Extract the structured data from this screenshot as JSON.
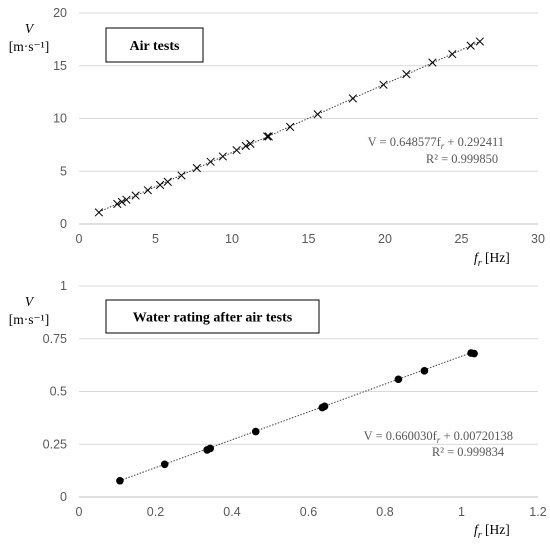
{
  "chart_data": [
    {
      "type": "scatter",
      "title": "Air tests",
      "ylabel_var": "V",
      "ylabel_unit": "[m·s⁻¹]",
      "xlabel_var": "f",
      "xlabel_sub": "r",
      "xlabel_unit": "[Hz]",
      "xlim": [
        0,
        30
      ],
      "ylim": [
        0,
        20
      ],
      "xticks": [
        0,
        5,
        10,
        15,
        20,
        25,
        30
      ],
      "yticks": [
        0,
        5,
        10,
        15,
        20
      ],
      "tick_labels_x": [
        "0",
        "5",
        "10",
        "15",
        "20",
        "25",
        "30"
      ],
      "tick_labels_y": [
        "0",
        "5",
        "10",
        "15",
        "20"
      ],
      "marker": "x",
      "grid": "horizontal",
      "x": [
        1.3,
        2.5,
        2.8,
        3.1,
        3.7,
        4.5,
        5.3,
        5.8,
        6.7,
        7.7,
        8.6,
        9.4,
        10.3,
        10.9,
        11.2,
        12.3,
        12.4,
        13.8,
        15.6,
        17.9,
        19.9,
        21.4,
        23.1,
        24.4,
        25.6,
        26.2
      ],
      "y": [
        1.1,
        1.9,
        2.1,
        2.3,
        2.7,
        3.2,
        3.7,
        4.0,
        4.6,
        5.3,
        5.9,
        6.4,
        7.0,
        7.4,
        7.6,
        8.3,
        8.3,
        9.2,
        10.4,
        11.9,
        13.2,
        14.2,
        15.3,
        16.1,
        16.9,
        17.3
      ],
      "fit": {
        "slope": 0.648577,
        "intercept": 0.292411,
        "x_range": [
          1.3,
          26.2
        ]
      },
      "equation": "V = 0.648577f",
      "equation_sub": "r",
      "equation_tail": " + 0.292411",
      "r2": "R² = 0.999850"
    },
    {
      "type": "scatter",
      "title": "Water rating after air tests",
      "ylabel_var": "V",
      "ylabel_unit": "[m·s⁻¹]",
      "xlabel_var": "f",
      "xlabel_sub": "r",
      "xlabel_unit": "[Hz]",
      "xlim": [
        0,
        1.2
      ],
      "ylim": [
        0,
        1
      ],
      "xticks": [
        0,
        0.2,
        0.4,
        0.6,
        0.8,
        1,
        1.2
      ],
      "yticks": [
        0,
        0.25,
        0.5,
        0.75,
        1
      ],
      "tick_labels_x": [
        "0",
        "0.2",
        "0.4",
        "0.6",
        "0.8",
        "1",
        "1.2"
      ],
      "tick_labels_y": [
        "0",
        "0.25",
        "0.5",
        "0.75",
        "1"
      ],
      "marker": "dot",
      "grid": "horizontal",
      "x": [
        0.107,
        0.224,
        0.335,
        0.343,
        0.462,
        0.636,
        0.642,
        0.835,
        0.903,
        1.025,
        1.033
      ],
      "y": [
        0.077,
        0.155,
        0.223,
        0.23,
        0.31,
        0.424,
        0.43,
        0.558,
        0.598,
        0.682,
        0.68
      ],
      "fit": {
        "slope": 0.66003,
        "intercept": 0.00720138,
        "x_range": [
          0.107,
          1.033
        ]
      },
      "equation": "V = 0.660030f",
      "equation_sub": "r",
      "equation_tail": " + 0.00720138",
      "r2": "R² = 0.999834"
    }
  ]
}
